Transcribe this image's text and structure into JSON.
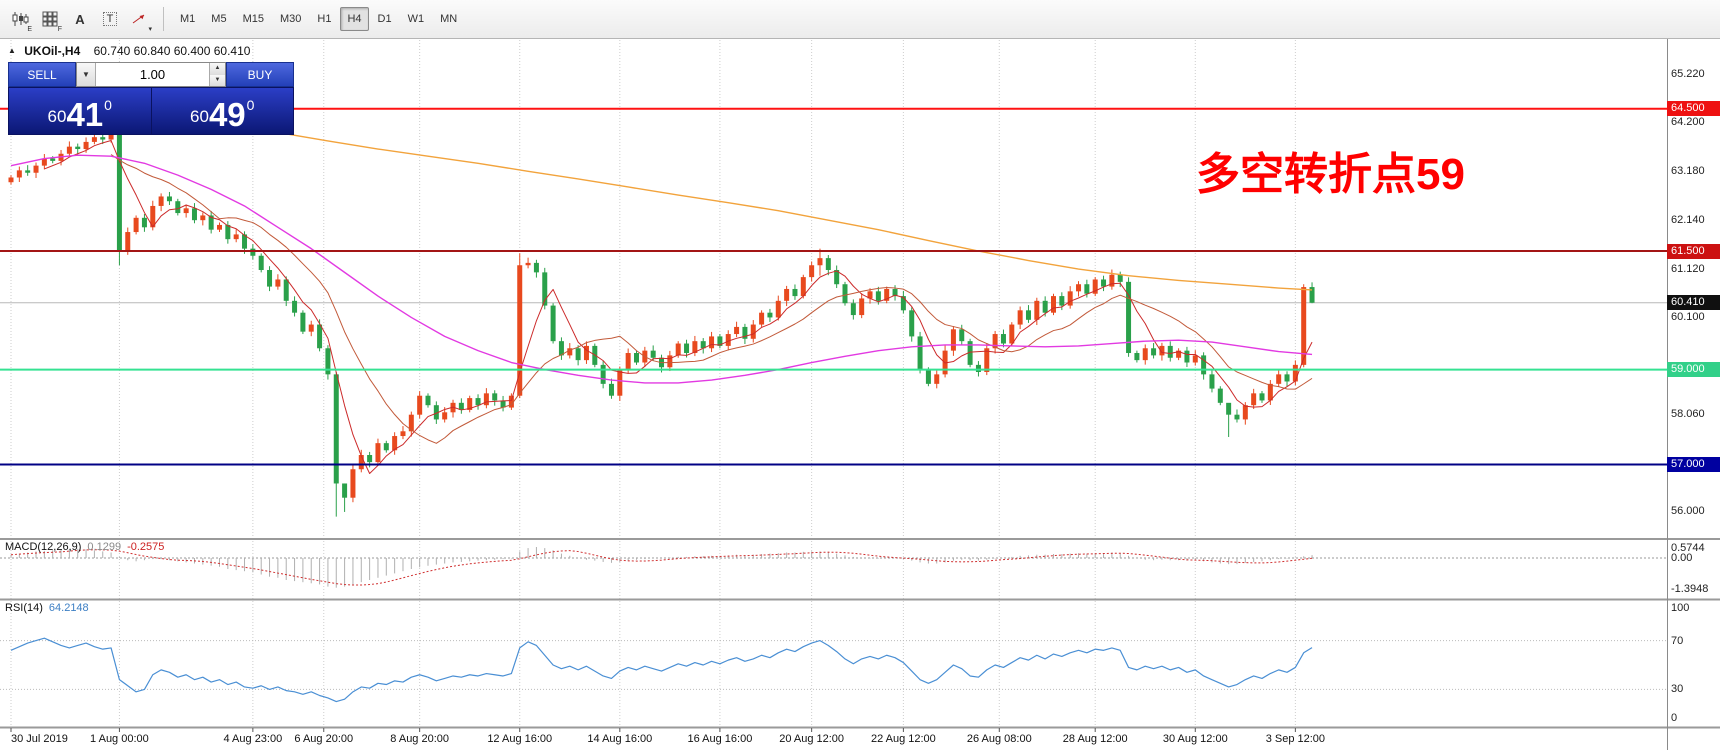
{
  "toolbar": {
    "icons": [
      {
        "name": "candlestick-chart-icon",
        "kind": "candles",
        "sub": "E"
      },
      {
        "name": "chart-template-icon",
        "kind": "grid",
        "sub": "F"
      },
      {
        "name": "insert-text-icon",
        "kind": "letter",
        "glyph": "A"
      },
      {
        "name": "text-label-icon",
        "kind": "boxed",
        "glyph": "T"
      },
      {
        "name": "line-studies-icon",
        "kind": "arrow",
        "sub": "▾"
      }
    ],
    "timeframes": [
      "M1",
      "M5",
      "M15",
      "M30",
      "H1",
      "H4",
      "D1",
      "W1",
      "MN"
    ],
    "active_timeframe": "H4"
  },
  "chart_header": {
    "collapse_icon": "▲",
    "symbol": "UKOil-,H4",
    "ohlc": "60.740 60.840 60.400 60.410"
  },
  "trade_panel": {
    "sell_label": "SELL",
    "buy_label": "BUY",
    "volume": "1.00",
    "sell_price": {
      "small": "60",
      "big": "41",
      "sup": "0"
    },
    "buy_price": {
      "small": "60",
      "big": "49",
      "sup": "0"
    }
  },
  "annotation": {
    "text": "多空转折点59",
    "color": "#ff0000"
  },
  "indicators": {
    "macd": {
      "name": "MACD(12,26,9)",
      "value1": "0.1299",
      "value2": "-0.2575",
      "scale": [
        {
          "label": "0.5744",
          "v": 0.5744
        },
        {
          "label": "0.00",
          "v": 0
        },
        {
          "label": "-1.3948",
          "v": -1.3948
        }
      ]
    },
    "rsi": {
      "name": "RSI(14)",
      "value": "64.2148",
      "scale": [
        {
          "label": "100",
          "v": 100
        },
        {
          "label": "70",
          "v": 70
        },
        {
          "label": "30",
          "v": 30
        },
        {
          "label": "0",
          "v": 0
        }
      ]
    }
  },
  "chart_data": {
    "type": "candlestick",
    "symbol": "UKOil-",
    "timeframe": "H4",
    "up_color": "#e8491e",
    "down_color": "#2aa04a",
    "first_open": 62.95,
    "closes": [
      63.05,
      63.2,
      63.15,
      63.3,
      63.45,
      63.4,
      63.55,
      63.7,
      63.65,
      63.8,
      63.9,
      63.85,
      63.95,
      61.5,
      61.9,
      62.2,
      62.0,
      62.45,
      62.65,
      62.55,
      62.3,
      62.4,
      62.15,
      62.25,
      61.95,
      62.05,
      61.75,
      61.85,
      61.55,
      61.4,
      61.1,
      60.75,
      60.9,
      60.45,
      60.2,
      59.8,
      59.95,
      59.45,
      58.9,
      56.6,
      56.3,
      56.9,
      57.2,
      57.05,
      57.45,
      57.3,
      57.6,
      57.7,
      58.05,
      58.45,
      58.25,
      57.95,
      58.1,
      58.3,
      58.15,
      58.4,
      58.25,
      58.5,
      58.35,
      58.2,
      58.45,
      61.2,
      61.25,
      61.05,
      60.35,
      59.6,
      59.3,
      59.45,
      59.2,
      59.5,
      59.1,
      58.7,
      58.45,
      59.0,
      59.35,
      59.15,
      59.4,
      59.25,
      59.05,
      59.3,
      59.55,
      59.35,
      59.6,
      59.45,
      59.7,
      59.5,
      59.75,
      59.9,
      59.65,
      59.95,
      60.2,
      60.1,
      60.45,
      60.7,
      60.55,
      60.95,
      61.2,
      61.35,
      61.1,
      60.8,
      60.4,
      60.15,
      60.5,
      60.65,
      60.45,
      60.7,
      60.55,
      60.25,
      59.7,
      59.0,
      58.7,
      58.9,
      59.4,
      59.85,
      59.6,
      59.1,
      58.95,
      59.45,
      59.75,
      59.55,
      59.95,
      60.25,
      60.05,
      60.45,
      60.2,
      60.55,
      60.35,
      60.65,
      60.8,
      60.6,
      60.9,
      60.75,
      61.0,
      60.85,
      59.35,
      59.2,
      59.45,
      59.3,
      59.5,
      59.25,
      59.4,
      59.15,
      59.3,
      58.9,
      58.6,
      58.3,
      58.05,
      57.95,
      58.25,
      58.5,
      58.35,
      58.7,
      58.9,
      58.75,
      59.1,
      60.74,
      60.41
    ],
    "wicks": {
      "13": [
        64.05,
        61.2
      ],
      "39": [
        58.95,
        55.9
      ],
      "40": [
        56.6,
        56.0
      ],
      "61": [
        61.45,
        58.4
      ],
      "97": [
        61.55,
        60.98
      ],
      "146": [
        58.2,
        57.58
      ],
      "155": [
        60.8,
        59.05
      ],
      "156": [
        60.84,
        60.4
      ]
    },
    "ma_orange": [
      [
        26,
        64.2
      ],
      [
        32,
        64.0
      ],
      [
        38,
        63.82
      ],
      [
        44,
        63.65
      ],
      [
        50,
        63.5
      ],
      [
        56,
        63.35
      ],
      [
        62,
        63.18
      ],
      [
        68,
        63.02
      ],
      [
        74,
        62.85
      ],
      [
        80,
        62.68
      ],
      [
        86,
        62.52
      ],
      [
        92,
        62.35
      ],
      [
        98,
        62.15
      ],
      [
        104,
        61.95
      ],
      [
        110,
        61.72
      ],
      [
        116,
        61.5
      ],
      [
        122,
        61.3
      ],
      [
        128,
        61.12
      ],
      [
        134,
        60.98
      ],
      [
        140,
        60.88
      ],
      [
        146,
        60.8
      ],
      [
        152,
        60.72
      ],
      [
        156,
        60.68
      ]
    ],
    "ma_magenta": [
      [
        0,
        63.3
      ],
      [
        4,
        63.45
      ],
      [
        8,
        63.52
      ],
      [
        12,
        63.5
      ],
      [
        16,
        63.35
      ],
      [
        20,
        63.1
      ],
      [
        24,
        62.8
      ],
      [
        28,
        62.45
      ],
      [
        32,
        62.0
      ],
      [
        36,
        61.55
      ],
      [
        40,
        61.05
      ],
      [
        44,
        60.55
      ],
      [
        48,
        60.1
      ],
      [
        52,
        59.7
      ],
      [
        56,
        59.4
      ],
      [
        60,
        59.15
      ],
      [
        64,
        59.0
      ],
      [
        68,
        58.88
      ],
      [
        72,
        58.78
      ],
      [
        76,
        58.72
      ],
      [
        80,
        58.72
      ],
      [
        84,
        58.78
      ],
      [
        88,
        58.88
      ],
      [
        92,
        59.0
      ],
      [
        96,
        59.15
      ],
      [
        100,
        59.28
      ],
      [
        104,
        59.4
      ],
      [
        108,
        59.48
      ],
      [
        112,
        59.52
      ],
      [
        116,
        59.52
      ],
      [
        120,
        59.5
      ],
      [
        124,
        59.48
      ],
      [
        128,
        59.5
      ],
      [
        132,
        59.55
      ],
      [
        136,
        59.6
      ],
      [
        140,
        59.62
      ],
      [
        144,
        59.58
      ],
      [
        148,
        59.48
      ],
      [
        152,
        59.38
      ],
      [
        156,
        59.32
      ]
    ],
    "levels": [
      {
        "price": 64.5,
        "label": "64.500",
        "color": "#ff1212",
        "badge": "#ee1111"
      },
      {
        "price": 61.5,
        "label": "61.500",
        "color": "#a31515",
        "badge": "#cc1111"
      },
      {
        "price": 59.0,
        "label": "59.000",
        "color": "#35e292",
        "badge": "#32d089"
      },
      {
        "price": 57.0,
        "label": "57.000",
        "color": "#000085",
        "badge": "#0000a0"
      }
    ],
    "current_price": {
      "price": 60.41,
      "label": "60.410",
      "badge": "#101010"
    },
    "y_ticks": [
      {
        "label": "65.220",
        "price": 65.22
      },
      {
        "label": "64.200",
        "price": 64.2
      },
      {
        "label": "63.180",
        "price": 63.18
      },
      {
        "label": "62.140",
        "price": 62.14
      },
      {
        "label": "61.120",
        "price": 61.12
      },
      {
        "label": "60.100",
        "price": 60.1
      },
      {
        "label": "58.060",
        "price": 58.06
      },
      {
        "label": "56.000",
        "price": 56.0
      }
    ],
    "x_labels": [
      {
        "label": "30 Jul 2019",
        "i": 0,
        "align": "left"
      },
      {
        "label": "1 Aug 00:00",
        "i": 13
      },
      {
        "label": "4 Aug 23:00",
        "i": 29
      },
      {
        "label": "6 Aug 20:00",
        "i": 37.5
      },
      {
        "label": "8 Aug 20:00",
        "i": 49
      },
      {
        "label": "12 Aug 16:00",
        "i": 61
      },
      {
        "label": "14 Aug 16:00",
        "i": 73
      },
      {
        "label": "16 Aug 16:00",
        "i": 85
      },
      {
        "label": "20 Aug 12:00",
        "i": 96
      },
      {
        "label": "22 Aug 12:00",
        "i": 107
      },
      {
        "label": "26 Aug 08:00",
        "i": 118.5
      },
      {
        "label": "28 Aug 12:00",
        "i": 130
      },
      {
        "label": "30 Aug 12:00",
        "i": 142
      },
      {
        "label": "3 Sep 12:00",
        "i": 154
      }
    ],
    "macd_hist": [
      0.15,
      0.2,
      0.25,
      0.3,
      0.32,
      0.35,
      0.38,
      0.4,
      0.42,
      0.4,
      0.35,
      0.3,
      0.25,
      0.05,
      -0.1,
      -0.15,
      -0.1,
      -0.05,
      -0.05,
      -0.1,
      -0.15,
      -0.2,
      -0.25,
      -0.3,
      -0.35,
      -0.4,
      -0.5,
      -0.55,
      -0.6,
      -0.65,
      -0.75,
      -0.85,
      -0.9,
      -1.0,
      -1.05,
      -1.1,
      -1.15,
      -1.2,
      -1.3,
      -1.35,
      -1.3,
      -1.2,
      -1.1,
      -1.0,
      -0.9,
      -0.8,
      -0.7,
      -0.6,
      -0.5,
      -0.42,
      -0.35,
      -0.3,
      -0.25,
      -0.2,
      -0.18,
      -0.15,
      -0.12,
      -0.1,
      -0.08,
      -0.05,
      -0.02,
      0.3,
      0.45,
      0.5,
      0.45,
      0.35,
      0.2,
      0.1,
      0.0,
      -0.08,
      -0.12,
      -0.18,
      -0.22,
      -0.18,
      -0.12,
      -0.08,
      -0.05,
      -0.02,
      0.0,
      0.02,
      0.05,
      0.05,
      0.08,
      0.08,
      0.1,
      0.1,
      0.12,
      0.15,
      0.12,
      0.15,
      0.18,
      0.2,
      0.22,
      0.25,
      0.25,
      0.28,
      0.3,
      0.3,
      0.25,
      0.2,
      0.12,
      0.05,
      0.0,
      -0.02,
      -0.02,
      0.0,
      0.0,
      -0.05,
      -0.12,
      -0.2,
      -0.25,
      -0.25,
      -0.2,
      -0.12,
      -0.08,
      -0.1,
      -0.12,
      -0.08,
      -0.02,
      0.0,
      0.05,
      0.1,
      0.12,
      0.15,
      0.15,
      0.18,
      0.18,
      0.2,
      0.22,
      0.2,
      0.22,
      0.22,
      0.25,
      0.22,
      0.1,
      -0.02,
      -0.08,
      -0.1,
      -0.08,
      -0.1,
      -0.1,
      -0.12,
      -0.1,
      -0.15,
      -0.2,
      -0.25,
      -0.28,
      -0.28,
      -0.22,
      -0.18,
      -0.15,
      -0.1,
      -0.05,
      -0.02,
      0.02,
      0.08,
      0.13
    ],
    "rsi_values": [
      62,
      65,
      68,
      70,
      72,
      69,
      66,
      64,
      66,
      68,
      65,
      63,
      64,
      38,
      33,
      28,
      30,
      42,
      46,
      44,
      40,
      42,
      38,
      40,
      36,
      38,
      34,
      36,
      32,
      31,
      33,
      30,
      32,
      29,
      28,
      26,
      28,
      25,
      23,
      20,
      22,
      28,
      32,
      31,
      35,
      34,
      37,
      36,
      40,
      42,
      40,
      37,
      39,
      41,
      40,
      42,
      41,
      43,
      42,
      41,
      43,
      64,
      69,
      66,
      58,
      50,
      47,
      49,
      46,
      49,
      45,
      41,
      39,
      45,
      48,
      46,
      49,
      47,
      45,
      48,
      51,
      49,
      52,
      50,
      53,
      51,
      54,
      56,
      53,
      55,
      58,
      56,
      60,
      63,
      61,
      65,
      68,
      70,
      66,
      61,
      55,
      51,
      55,
      57,
      55,
      58,
      56,
      52,
      45,
      38,
      35,
      38,
      44,
      50,
      47,
      41,
      40,
      46,
      50,
      48,
      52,
      56,
      54,
      58,
      55,
      59,
      57,
      60,
      62,
      60,
      63,
      62,
      64,
      62,
      48,
      46,
      49,
      47,
      49,
      46,
      48,
      44,
      46,
      41,
      38,
      35,
      32,
      34,
      38,
      41,
      39,
      43,
      46,
      44,
      48,
      60,
      64.21
    ]
  }
}
